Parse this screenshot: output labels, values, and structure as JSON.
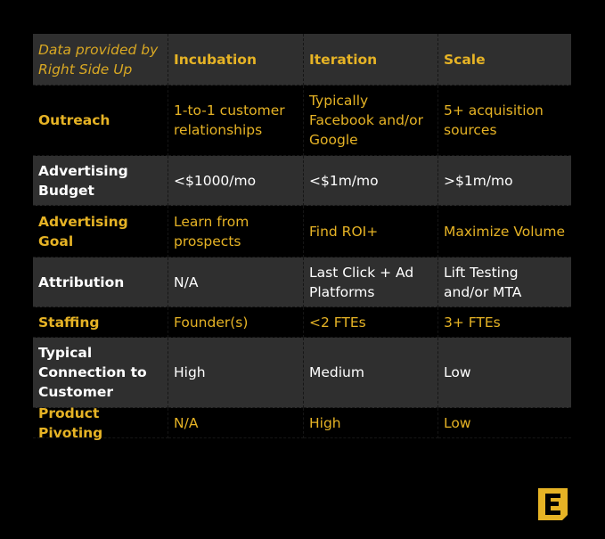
{
  "table": {
    "header": {
      "note": "Data provided by Right Side Up",
      "col1": "Incubation",
      "col2": "Iteration",
      "col3": "Scale"
    },
    "rows": [
      {
        "label": "Outreach",
        "values": [
          "1-to-1 customer relationships",
          "Typically Facebook and/or Google",
          "5+ acquisition sources"
        ]
      },
      {
        "label": "Advertising Budget",
        "values": [
          "<$1000/mo",
          "<$1m/mo",
          ">$1m/mo"
        ]
      },
      {
        "label": "Advertising Goal",
        "values": [
          "Learn from prospects",
          "Find ROI+",
          "Maximize Volume"
        ]
      },
      {
        "label": "Attribution",
        "values": [
          "N/A",
          "Last Click + Ad Platforms",
          "Lift Testing and/or MTA"
        ]
      },
      {
        "label": "Staffing",
        "values": [
          "Founder(s)",
          "<2 FTEs",
          "3+ FTEs"
        ]
      },
      {
        "label": "Typical Connection to Customer",
        "values": [
          "High",
          "Medium",
          "Low"
        ]
      },
      {
        "label": "Product Pivoting",
        "values": [
          "N/A",
          "High",
          "Low"
        ]
      }
    ]
  },
  "colors": {
    "background": "#000000",
    "shaded_row": "#2f2f2f",
    "gold": "#e6b325",
    "white": "#ffffff"
  },
  "logo": {
    "icon": "letter-e-logo-icon",
    "letter": "E"
  }
}
